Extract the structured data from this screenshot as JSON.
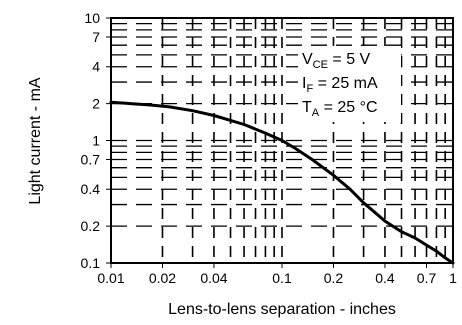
{
  "chart_data": {
    "type": "line",
    "xlabel": "Lens-to-lens separation - inches",
    "ylabel": "Light  current - mA",
    "x_scale": "log",
    "y_scale": "log",
    "xlim": [
      0.01,
      1
    ],
    "ylim": [
      0.1,
      10
    ],
    "grid": true,
    "x_tick_labels": [
      "0.01",
      "0.02",
      "0.04",
      "0.1",
      "0.2",
      "0.4",
      "0.7",
      "1"
    ],
    "y_tick_labels": [
      "10",
      "7",
      "4",
      "2",
      "1",
      "0.7",
      "0.4",
      "0.2",
      "0.1"
    ],
    "annotations": [
      {
        "main": "V",
        "sub": "CE",
        "rest": " = 5 V"
      },
      {
        "main": "I",
        "sub": "F",
        "rest": " = 25 mA"
      },
      {
        "main": "T",
        "sub": "A",
        "rest": " = 25 °C"
      }
    ],
    "series": [
      {
        "x": [
          0.01,
          0.013,
          0.017,
          0.022,
          0.03,
          0.04,
          0.05,
          0.06,
          0.07,
          0.08,
          0.1,
          0.12,
          0.15,
          0.2,
          0.25,
          0.3,
          0.4,
          0.5,
          0.6,
          0.7,
          0.8,
          0.9,
          1.0
        ],
        "y": [
          2.05,
          2.0,
          1.95,
          1.88,
          1.75,
          1.6,
          1.46,
          1.35,
          1.24,
          1.15,
          1.0,
          0.86,
          0.7,
          0.52,
          0.4,
          0.31,
          0.22,
          0.18,
          0.16,
          0.14,
          0.125,
          0.11,
          0.1
        ]
      }
    ]
  }
}
